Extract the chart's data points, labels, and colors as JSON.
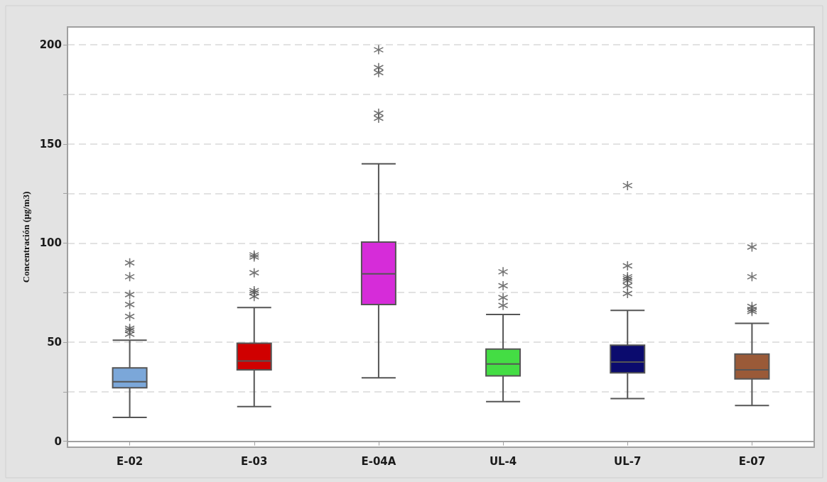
{
  "chart_data": {
    "type": "box",
    "ylabel": "Concentración (µg/m3)",
    "categories": [
      "E-02",
      "E-03",
      "E-04A",
      "UL-4",
      "UL-7",
      "E-07"
    ],
    "colors": [
      "#7ba7d9",
      "#d00000",
      "#d62cd9",
      "#44dd44",
      "#0b0b6e",
      "#9a5a38"
    ],
    "boxes": [
      {
        "low": 12,
        "q1": 27,
        "median": 30,
        "q3": 37,
        "high": 51,
        "outliers": [
          90,
          83,
          74,
          69,
          63,
          57,
          56,
          54
        ]
      },
      {
        "low": 17.5,
        "q1": 36,
        "median": 40.5,
        "q3": 49.5,
        "high": 67.5,
        "outliers": [
          94,
          93,
          85,
          76,
          75,
          73
        ]
      },
      {
        "low": 32,
        "q1": 69,
        "median": 84.5,
        "q3": 100.5,
        "high": 140,
        "outliers": [
          197.5,
          188.5,
          186,
          165.5,
          163
        ]
      },
      {
        "low": 20,
        "q1": 33,
        "median": 39,
        "q3": 46.5,
        "high": 64,
        "outliers": [
          85.5,
          78.5,
          72.5,
          68.5
        ]
      },
      {
        "low": 21.5,
        "q1": 34.5,
        "median": 40,
        "q3": 48.5,
        "high": 66,
        "outliers": [
          129,
          88.5,
          83,
          82,
          81,
          78.5,
          74.5
        ]
      },
      {
        "low": 18,
        "q1": 31.5,
        "median": 36,
        "q3": 44,
        "high": 59.5,
        "outliers": [
          98,
          83,
          68,
          66.5,
          65.5
        ]
      }
    ],
    "ylim": [
      -3,
      209
    ],
    "yticks": [
      0,
      {
        "value": 25,
        "label": null
      },
      50,
      {
        "value": 75,
        "label": null
      },
      100,
      {
        "value": 125,
        "label": null
      },
      150,
      {
        "value": 175,
        "label": null
      },
      200
    ],
    "grid": "y",
    "marker": "star"
  }
}
